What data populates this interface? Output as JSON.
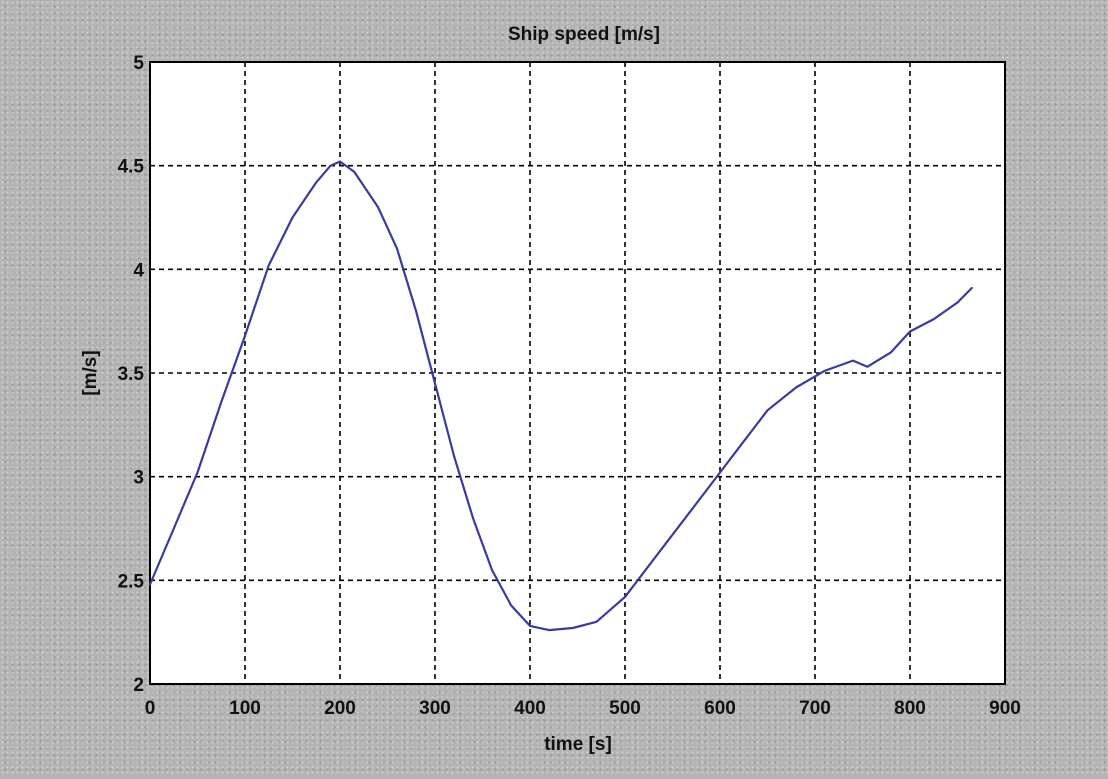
{
  "chart_data": {
    "type": "line",
    "title": "Ship speed [m/s]",
    "xlabel": "time [s]",
    "ylabel": "[m/s]",
    "xlim": [
      0,
      900
    ],
    "ylim": [
      2,
      5
    ],
    "xticks": [
      0,
      100,
      200,
      300,
      400,
      500,
      600,
      700,
      800,
      900
    ],
    "yticks": [
      2,
      2.5,
      3,
      3.5,
      4,
      4.5,
      5
    ],
    "xtick_labels": [
      "0",
      "100",
      "200",
      "300",
      "400",
      "500",
      "600",
      "700",
      "800",
      "900"
    ],
    "ytick_labels": [
      "2",
      "2.5",
      "3",
      "3.5",
      "4",
      "4.5",
      "5"
    ],
    "grid": true,
    "legend": false,
    "series": [
      {
        "color": "#3a3aa0",
        "x": [
          0,
          25,
          50,
          75,
          100,
          125,
          150,
          175,
          190,
          200,
          215,
          240,
          260,
          280,
          300,
          320,
          340,
          360,
          380,
          400,
          420,
          445,
          470,
          500,
          530,
          560,
          590,
          620,
          650,
          680,
          710,
          740,
          755,
          780,
          800,
          825,
          850,
          865
        ],
        "y": [
          2.48,
          2.75,
          3.02,
          3.36,
          3.68,
          4.02,
          4.25,
          4.42,
          4.5,
          4.52,
          4.47,
          4.3,
          4.1,
          3.8,
          3.45,
          3.1,
          2.8,
          2.55,
          2.38,
          2.28,
          2.26,
          2.27,
          2.3,
          2.42,
          2.6,
          2.78,
          2.96,
          3.14,
          3.32,
          3.43,
          3.51,
          3.56,
          3.53,
          3.6,
          3.7,
          3.76,
          3.84,
          3.91
        ]
      }
    ]
  }
}
